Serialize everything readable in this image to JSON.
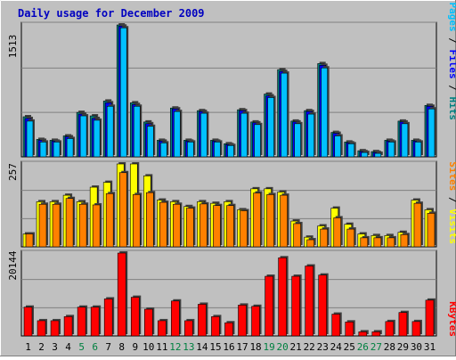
{
  "title": "Daily usage for December 2009",
  "colors": {
    "background": "#c0c0c0",
    "plot_background": "#c0c0c0",
    "title": "#0000c0",
    "hits_fill": "#008080",
    "files_fill": "#0000ff",
    "pages_fill": "#00c0ff",
    "visits_fill": "#ffff00",
    "sites_fill": "#ff8000",
    "kbytes_fill": "#ff0000",
    "weekend_tick": "#008040",
    "weekday_tick": "#000000"
  },
  "chart_data": [
    {
      "type": "bar",
      "panel": "top",
      "ymax_label": "1513",
      "ylim": [
        0,
        1513
      ],
      "legend": [
        "Pages",
        "Files",
        "Hits"
      ],
      "categories": [
        "1",
        "2",
        "3",
        "4",
        "5",
        "6",
        "7",
        "8",
        "9",
        "10",
        "11",
        "12",
        "13",
        "14",
        "15",
        "16",
        "17",
        "18",
        "19",
        "20",
        "21",
        "22",
        "23",
        "24",
        "25",
        "26",
        "27",
        "28",
        "29",
        "30",
        "31"
      ],
      "series": [
        {
          "name": "Hits",
          "values": [
            460,
            200,
            190,
            240,
            510,
            470,
            640,
            1513,
            620,
            400,
            190,
            560,
            190,
            530,
            190,
            150,
            540,
            400,
            720,
            1000,
            410,
            530,
            1070,
            280,
            170,
            70,
            60,
            190,
            410,
            190,
            590
          ]
        },
        {
          "name": "Files",
          "values": [
            440,
            190,
            180,
            230,
            490,
            440,
            620,
            1500,
            600,
            380,
            180,
            550,
            180,
            520,
            180,
            140,
            530,
            390,
            700,
            980,
            400,
            520,
            1050,
            270,
            160,
            60,
            50,
            180,
            400,
            180,
            580
          ]
        },
        {
          "name": "Pages",
          "values": [
            410,
            170,
            170,
            210,
            470,
            420,
            580,
            1480,
            580,
            350,
            160,
            520,
            170,
            500,
            170,
            130,
            500,
            370,
            680,
            960,
            380,
            490,
            1020,
            240,
            150,
            50,
            40,
            170,
            380,
            170,
            550
          ]
        }
      ]
    },
    {
      "type": "bar",
      "panel": "middle",
      "ymax_label": "257",
      "ylim": [
        0,
        257
      ],
      "legend": [
        "Sites",
        "Visits"
      ],
      "categories": [
        "1",
        "2",
        "3",
        "4",
        "5",
        "6",
        "7",
        "8",
        "9",
        "10",
        "11",
        "12",
        "13",
        "14",
        "15",
        "16",
        "17",
        "18",
        "19",
        "20",
        "21",
        "22",
        "23",
        "24",
        "25",
        "26",
        "27",
        "28",
        "29",
        "30",
        "31"
      ],
      "series": [
        {
          "name": "Visits",
          "values": [
            40,
            140,
            140,
            160,
            140,
            185,
            200,
            257,
            257,
            220,
            145,
            140,
            125,
            140,
            135,
            140,
            115,
            180,
            180,
            170,
            80,
            30,
            65,
            120,
            70,
            40,
            35,
            35,
            45,
            145,
            115
          ]
        },
        {
          "name": "Sites",
          "values": [
            40,
            132,
            132,
            150,
            132,
            130,
            165,
            230,
            162,
            168,
            138,
            132,
            120,
            133,
            128,
            128,
            112,
            167,
            162,
            160,
            72,
            22,
            55,
            90,
            55,
            28,
            28,
            28,
            38,
            135,
            104
          ]
        }
      ]
    },
    {
      "type": "bar",
      "panel": "bottom",
      "ymax_label": "20144",
      "ylim": [
        0,
        20144
      ],
      "legend": [
        "KBytes"
      ],
      "categories": [
        "1",
        "2",
        "3",
        "4",
        "5",
        "6",
        "7",
        "8",
        "9",
        "10",
        "11",
        "12",
        "13",
        "14",
        "15",
        "16",
        "17",
        "18",
        "19",
        "20",
        "21",
        "22",
        "23",
        "24",
        "25",
        "26",
        "27",
        "28",
        "29",
        "30",
        "31"
      ],
      "series": [
        {
          "name": "KBytes",
          "values": [
            7000,
            3700,
            3700,
            4700,
            7000,
            7000,
            9000,
            20144,
            9400,
            6500,
            3700,
            8500,
            3700,
            7700,
            4700,
            3200,
            7500,
            7200,
            14500,
            19000,
            14500,
            17000,
            14800,
            5300,
            3400,
            1000,
            1000,
            3500,
            5700,
            3500,
            8700
          ]
        }
      ]
    }
  ]
}
